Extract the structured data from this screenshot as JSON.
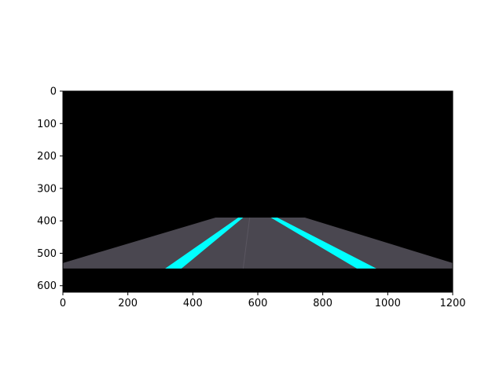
{
  "chart_data": {
    "type": "image",
    "title": "",
    "xlabel": "",
    "ylabel": "",
    "xlim": [
      0,
      1200
    ],
    "ylim": [
      620,
      0
    ],
    "x_ticks": [
      0,
      200,
      400,
      600,
      800,
      1000,
      1200
    ],
    "y_ticks": [
      0,
      100,
      200,
      300,
      400,
      500,
      600
    ],
    "x_tick_labels": [
      "0",
      "200",
      "400",
      "600",
      "800",
      "1000",
      "1200"
    ],
    "y_tick_labels": [
      "0",
      "100",
      "200",
      "300",
      "400",
      "500",
      "600"
    ],
    "grid": false,
    "image": {
      "width": 1200,
      "height": 620,
      "background_color": "#000000",
      "road": {
        "color": "#4a4750",
        "polygon": [
          [
            0,
            530
          ],
          [
            470,
            390
          ],
          [
            745,
            390
          ],
          [
            1200,
            530
          ],
          [
            1200,
            547
          ],
          [
            0,
            547
          ]
        ]
      },
      "lane_markings": {
        "color": "#00ffff",
        "left": [
          [
            315,
            547
          ],
          [
            365,
            547
          ],
          [
            555,
            390
          ],
          [
            540,
            390
          ]
        ],
        "right": [
          [
            640,
            390
          ],
          [
            660,
            390
          ],
          [
            965,
            547
          ],
          [
            905,
            547
          ]
        ]
      }
    }
  }
}
